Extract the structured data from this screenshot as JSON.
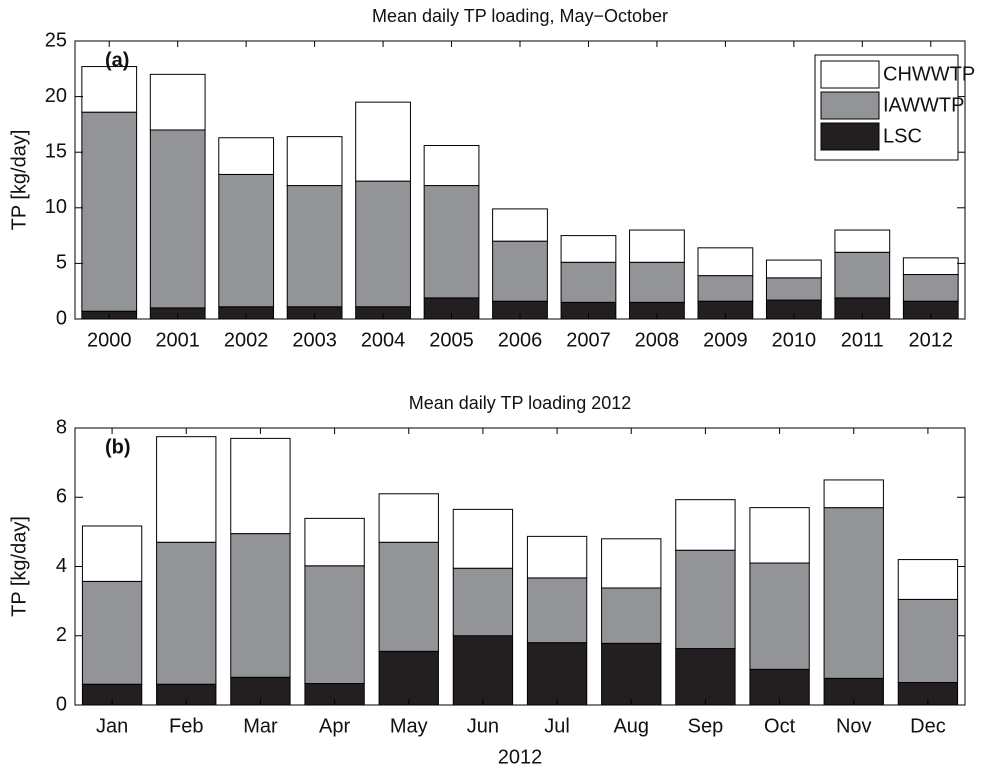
{
  "chart_data": [
    {
      "type": "bar",
      "stacked": true,
      "title": "Mean daily TP loading, May−October",
      "panel_label": "(a)",
      "ylabel": "TP [kg/day]",
      "categories": [
        "2000",
        "2001",
        "2002",
        "2003",
        "2004",
        "2005",
        "2006",
        "2007",
        "2008",
        "2009",
        "2010",
        "2011",
        "2012"
      ],
      "series": [
        {
          "name": "LSC",
          "color": "#231f20",
          "values": [
            0.7,
            1.0,
            1.1,
            1.1,
            1.1,
            1.9,
            1.6,
            1.5,
            1.5,
            1.6,
            1.7,
            1.9,
            1.6
          ]
        },
        {
          "name": "IAWWTP",
          "color": "#929497",
          "values": [
            17.9,
            16.0,
            11.9,
            10.9,
            11.3,
            10.1,
            5.4,
            3.6,
            3.6,
            2.3,
            2.0,
            4.1,
            2.4
          ]
        },
        {
          "name": "CHWWTP",
          "color": "#ffffff",
          "values": [
            4.1,
            5.0,
            3.3,
            4.4,
            7.1,
            3.6,
            2.9,
            2.4,
            2.9,
            2.5,
            1.6,
            2.0,
            1.5
          ]
        }
      ],
      "ylim": [
        0,
        25
      ],
      "yticks": [
        0,
        5,
        10,
        15,
        20,
        25
      ],
      "legend": "upper right"
    },
    {
      "type": "bar",
      "stacked": true,
      "title": "Mean daily TP loading 2012",
      "panel_label": "(b)",
      "ylabel": "TP [kg/day]",
      "xlabel": "2012",
      "categories": [
        "Jan",
        "Feb",
        "Mar",
        "Apr",
        "May",
        "Jun",
        "Jul",
        "Aug",
        "Sep",
        "Oct",
        "Nov",
        "Dec"
      ],
      "series": [
        {
          "name": "LSC",
          "color": "#231f20",
          "values": [
            0.6,
            0.6,
            0.8,
            0.62,
            1.55,
            2.0,
            1.8,
            1.78,
            1.63,
            1.03,
            0.77,
            0.65
          ]
        },
        {
          "name": "IAWWTP",
          "color": "#929497",
          "values": [
            2.97,
            4.1,
            4.15,
            3.4,
            3.15,
            1.95,
            1.87,
            1.6,
            2.84,
            3.07,
            4.93,
            2.4
          ]
        },
        {
          "name": "CHWWTP",
          "color": "#ffffff",
          "values": [
            1.6,
            3.05,
            2.75,
            1.37,
            1.4,
            1.7,
            1.2,
            1.42,
            1.46,
            1.6,
            0.8,
            1.15
          ]
        }
      ],
      "ylim": [
        0,
        8
      ],
      "yticks": [
        0,
        2,
        4,
        6,
        8
      ]
    }
  ]
}
